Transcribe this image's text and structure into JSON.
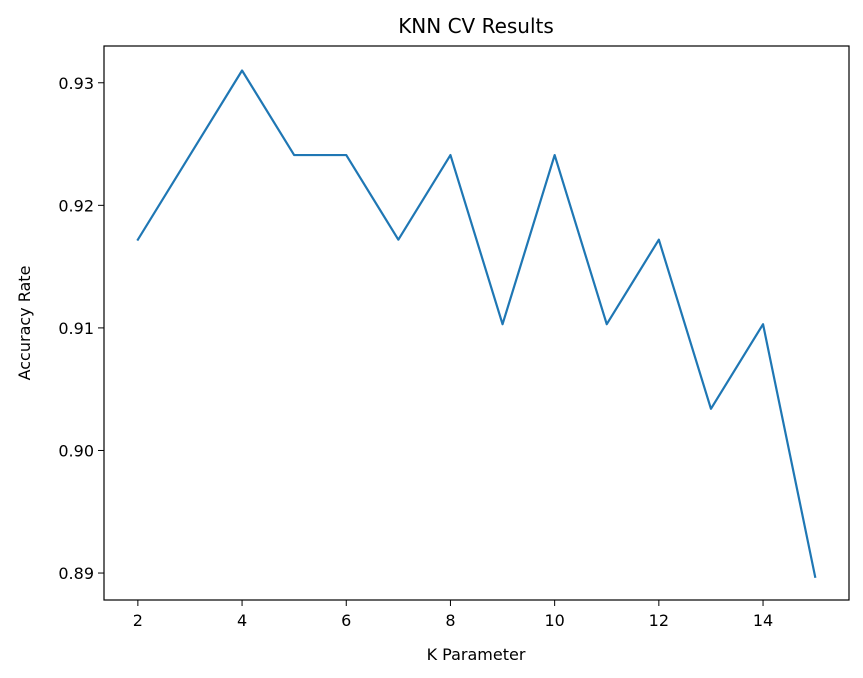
{
  "chart_data": {
    "type": "line",
    "title": "KNN CV Results",
    "xlabel": "K Parameter",
    "ylabel": "Accuracy Rate",
    "xlim": [
      1.35,
      15.65
    ],
    "ylim": [
      0.8878,
      0.933
    ],
    "xticks": [
      2,
      4,
      6,
      8,
      10,
      12,
      14
    ],
    "yticks": [
      0.89,
      0.9,
      0.91,
      0.92,
      0.93
    ],
    "xtick_labels": [
      "2",
      "4",
      "6",
      "8",
      "10",
      "12",
      "14"
    ],
    "ytick_labels": [
      "0.89",
      "0.90",
      "0.91",
      "0.92",
      "0.93"
    ],
    "grid": false,
    "series": [
      {
        "color": "#1f77b4",
        "x": [
          2,
          3,
          4,
          5,
          6,
          7,
          8,
          9,
          10,
          11,
          12,
          13,
          14,
          15
        ],
        "y": [
          0.9172,
          0.9241,
          0.931,
          0.9241,
          0.9241,
          0.9172,
          0.9241,
          0.9103,
          0.9241,
          0.9103,
          0.9172,
          0.9034,
          0.9103,
          0.8897
        ]
      }
    ]
  }
}
